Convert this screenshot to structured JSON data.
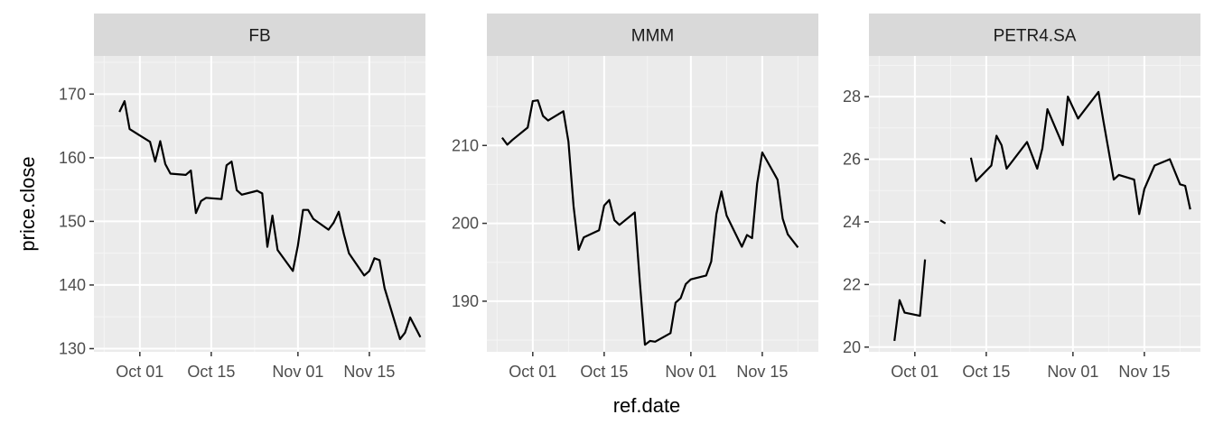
{
  "chart_data": {
    "type": "line",
    "xlabel": "ref.date",
    "ylabel": "price.close",
    "x_tick_labels": [
      "Oct 01",
      "Oct 15",
      "Nov 01",
      "Nov 15"
    ],
    "x_ticks": [
      "2018-10-01",
      "2018-10-15",
      "2018-11-01",
      "2018-11-15"
    ],
    "xlim": [
      "2018-09-22",
      "2018-11-26"
    ],
    "grid": true,
    "facets": [
      {
        "name": "FB",
        "ylim": [
          129.5,
          176
        ],
        "y_ticks": [
          130,
          140,
          150,
          160,
          170
        ],
        "segments": [
          [
            [
              "2018-09-27",
              167.2
            ],
            [
              "2018-09-28",
              168.9
            ],
            [
              "2018-09-29",
              164.5
            ],
            [
              "2018-10-01",
              163.5
            ],
            [
              "2018-10-03",
              162.5
            ],
            [
              "2018-10-04",
              159.4
            ],
            [
              "2018-10-05",
              162.6
            ],
            [
              "2018-10-06",
              159.0
            ],
            [
              "2018-10-07",
              157.5
            ],
            [
              "2018-10-10",
              157.3
            ],
            [
              "2018-10-11",
              158.0
            ],
            [
              "2018-10-12",
              151.3
            ],
            [
              "2018-10-13",
              153.2
            ],
            [
              "2018-10-14",
              153.7
            ],
            [
              "2018-10-17",
              153.5
            ],
            [
              "2018-10-18",
              158.8
            ],
            [
              "2018-10-19",
              159.4
            ],
            [
              "2018-10-20",
              154.9
            ],
            [
              "2018-10-21",
              154.2
            ],
            [
              "2018-10-24",
              154.8
            ],
            [
              "2018-10-25",
              154.4
            ],
            [
              "2018-10-26",
              146.0
            ],
            [
              "2018-10-27",
              150.9
            ],
            [
              "2018-10-28",
              145.5
            ],
            [
              "2018-10-31",
              142.2
            ],
            [
              "2018-11-01",
              146.2
            ],
            [
              "2018-11-02",
              151.8
            ],
            [
              "2018-11-03",
              151.8
            ],
            [
              "2018-11-04",
              150.4
            ],
            [
              "2018-11-07",
              148.7
            ],
            [
              "2018-11-08",
              149.8
            ],
            [
              "2018-11-09",
              151.5
            ],
            [
              "2018-11-10",
              148.0
            ],
            [
              "2018-11-11",
              145.0
            ],
            [
              "2018-11-14",
              141.5
            ],
            [
              "2018-11-15",
              142.2
            ],
            [
              "2018-11-16",
              144.2
            ],
            [
              "2018-11-17",
              143.9
            ],
            [
              "2018-11-18",
              139.5
            ],
            [
              "2018-11-21",
              131.5
            ],
            [
              "2018-11-22",
              132.5
            ],
            [
              "2018-11-23",
              134.9
            ],
            [
              "2018-11-25",
              131.8
            ]
          ]
        ]
      },
      {
        "name": "MMM",
        "ylim": [
          183.5,
          221.5
        ],
        "y_ticks": [
          190,
          200,
          210
        ],
        "segments": [
          [
            [
              "2018-09-25",
              211.0
            ],
            [
              "2018-09-26",
              210.1
            ],
            [
              "2018-09-27",
              210.7
            ],
            [
              "2018-09-30",
              212.3
            ],
            [
              "2018-10-01",
              215.7
            ],
            [
              "2018-10-02",
              215.8
            ],
            [
              "2018-10-03",
              213.8
            ],
            [
              "2018-10-04",
              213.2
            ],
            [
              "2018-10-07",
              214.4
            ],
            [
              "2018-10-08",
              210.5
            ],
            [
              "2018-10-09",
              202.2
            ],
            [
              "2018-10-10",
              196.6
            ],
            [
              "2018-10-11",
              198.2
            ],
            [
              "2018-10-14",
              199.1
            ],
            [
              "2018-10-15",
              202.3
            ],
            [
              "2018-10-16",
              203.0
            ],
            [
              "2018-10-17",
              200.4
            ],
            [
              "2018-10-18",
              199.8
            ],
            [
              "2018-10-21",
              201.4
            ],
            [
              "2018-10-22",
              192.4
            ],
            [
              "2018-10-23",
              184.4
            ],
            [
              "2018-10-24",
              184.9
            ],
            [
              "2018-10-25",
              184.8
            ],
            [
              "2018-10-28",
              185.9
            ],
            [
              "2018-10-29",
              189.8
            ],
            [
              "2018-10-30",
              190.4
            ],
            [
              "2018-10-31",
              192.2
            ],
            [
              "2018-11-01",
              192.8
            ],
            [
              "2018-11-04",
              193.3
            ],
            [
              "2018-11-05",
              195.1
            ],
            [
              "2018-11-06",
              201.2
            ],
            [
              "2018-11-07",
              204.1
            ],
            [
              "2018-11-08",
              201.0
            ],
            [
              "2018-11-11",
              197.0
            ],
            [
              "2018-11-12",
              198.5
            ],
            [
              "2018-11-13",
              198.1
            ],
            [
              "2018-11-14",
              205.1
            ],
            [
              "2018-11-15",
              209.1
            ],
            [
              "2018-11-18",
              205.6
            ],
            [
              "2018-11-19",
              200.6
            ],
            [
              "2018-11-20",
              198.6
            ],
            [
              "2018-11-22",
              196.9
            ]
          ]
        ]
      },
      {
        "name": "PETR4.SA",
        "ylim": [
          19.85,
          29.3
        ],
        "y_ticks": [
          20,
          22,
          24,
          26,
          28
        ],
        "segments": [
          [
            [
              "2018-09-27",
              20.2
            ],
            [
              "2018-09-28",
              21.5
            ],
            [
              "2018-09-29",
              21.1
            ],
            [
              "2018-10-02",
              21.0
            ],
            [
              "2018-10-03",
              22.8
            ]
          ],
          [
            [
              "2018-10-06",
              24.05
            ],
            [
              "2018-10-07",
              23.95
            ]
          ],
          [
            [
              "2018-10-12",
              26.05
            ],
            [
              "2018-10-13",
              25.3
            ],
            [
              "2018-10-16",
              25.8
            ],
            [
              "2018-10-17",
              26.75
            ],
            [
              "2018-10-18",
              26.45
            ],
            [
              "2018-10-19",
              25.7
            ],
            [
              "2018-10-23",
              26.55
            ],
            [
              "2018-10-25",
              25.7
            ],
            [
              "2018-10-26",
              26.35
            ],
            [
              "2018-10-27",
              27.6
            ],
            [
              "2018-10-30",
              26.45
            ],
            [
              "2018-10-31",
              28.0
            ],
            [
              "2018-11-02",
              27.3
            ],
            [
              "2018-11-06",
              28.15
            ],
            [
              "2018-11-07",
              27.2
            ],
            [
              "2018-11-09",
              25.35
            ],
            [
              "2018-11-10",
              25.5
            ],
            [
              "2018-11-13",
              25.35
            ],
            [
              "2018-11-14",
              24.25
            ],
            [
              "2018-11-15",
              25.05
            ],
            [
              "2018-11-17",
              25.8
            ],
            [
              "2018-11-20",
              26.0
            ],
            [
              "2018-11-22",
              25.2
            ],
            [
              "2018-11-23",
              25.15
            ],
            [
              "2018-11-24",
              24.4
            ]
          ]
        ]
      }
    ]
  }
}
